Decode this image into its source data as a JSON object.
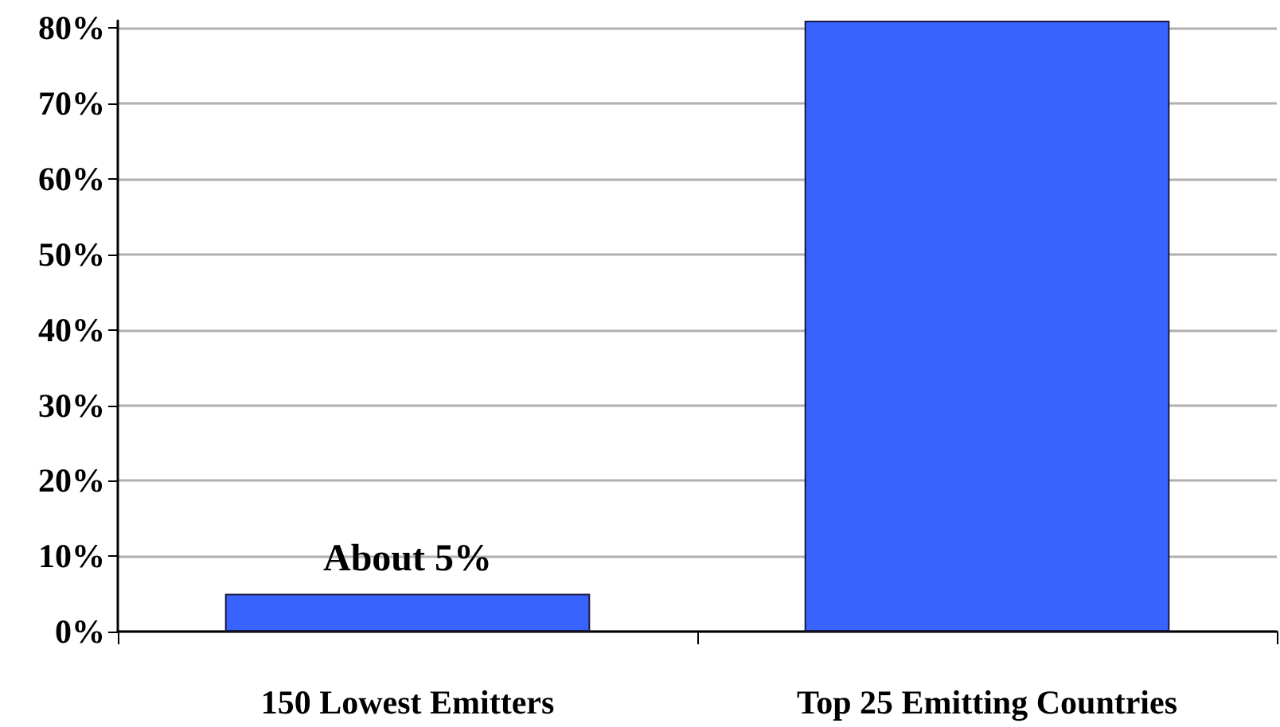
{
  "chart_data": {
    "type": "bar",
    "categories": [
      "150 Lowest Emitters",
      "Top 25 Emitting Countries"
    ],
    "values": [
      5,
      81
    ],
    "color": "#3863ff",
    "value_labels": [
      "About 5%",
      null
    ],
    "ylim": [
      0,
      81
    ],
    "yticks": [
      {
        "value": 0,
        "label": "0%"
      },
      {
        "value": 10,
        "label": "10%"
      },
      {
        "value": 20,
        "label": "20%"
      },
      {
        "value": 30,
        "label": "30%"
      },
      {
        "value": 40,
        "label": "40%"
      },
      {
        "value": 50,
        "label": "50%"
      },
      {
        "value": 60,
        "label": "60%"
      },
      {
        "value": 70,
        "label": "70%"
      },
      {
        "value": 80,
        "label": "80%"
      }
    ],
    "grid": "y"
  }
}
